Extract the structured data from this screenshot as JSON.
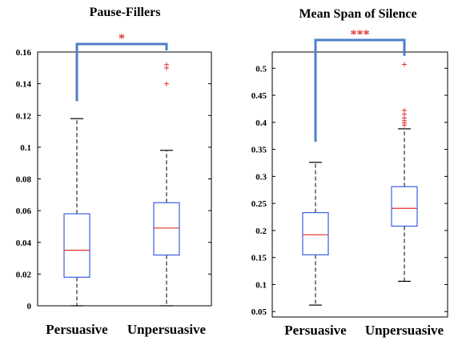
{
  "colors": {
    "box": "#3b5fe0",
    "median": "#e03030",
    "whisker": "#000000",
    "outlier": "#e03030",
    "bracket": "#4f7fc9",
    "star": "#e03030"
  },
  "chart_data": [
    {
      "type": "box",
      "title": "Pause-Fillers",
      "categories": [
        "Persuasive",
        "Unpersuasive"
      ],
      "ylim": [
        0,
        0.16
      ],
      "yticks": [
        0,
        0.02,
        0.04,
        0.06,
        0.08,
        0.1,
        0.12,
        0.14,
        0.16
      ],
      "ytick_labels": [
        "0",
        "0.02",
        "0.04",
        "0.06",
        "0.08",
        "0.1",
        "0.12",
        "0.14",
        "0.16"
      ],
      "boxes": [
        {
          "category": "Persuasive",
          "min": 0.0,
          "q1": 0.018,
          "median": 0.035,
          "q3": 0.058,
          "max": 0.118,
          "outliers": []
        },
        {
          "category": "Unpersuasive",
          "min": 0.0,
          "q1": 0.032,
          "median": 0.049,
          "q3": 0.065,
          "max": 0.098,
          "outliers": [
            0.14,
            0.15,
            0.152
          ]
        }
      ],
      "significance": {
        "label": "*",
        "level": 0.165,
        "left_bottom": 0.129,
        "right_bottom": 0.161
      }
    },
    {
      "type": "box",
      "title": "Mean Span of Silence",
      "categories": [
        "Persuasive",
        "Unpersuasive"
      ],
      "ylim": [
        0.04,
        0.53
      ],
      "yticks": [
        0.05,
        0.1,
        0.15,
        0.2,
        0.25,
        0.3,
        0.35,
        0.4,
        0.45,
        0.5
      ],
      "ytick_labels": [
        "0.05",
        "0.1",
        "0.15",
        "0.2",
        "0.25",
        "0.3",
        "0.35",
        "0.4",
        "0.45",
        "0.5"
      ],
      "boxes": [
        {
          "category": "Persuasive",
          "min": 0.062,
          "q1": 0.155,
          "median": 0.192,
          "q3": 0.233,
          "max": 0.326,
          "outliers": []
        },
        {
          "category": "Unpersuasive",
          "min": 0.106,
          "q1": 0.208,
          "median": 0.241,
          "q3": 0.281,
          "max": 0.388,
          "outliers": [
            0.395,
            0.399,
            0.403,
            0.408,
            0.415,
            0.422,
            0.507
          ]
        }
      ],
      "significance": {
        "label": "***",
        "level": 0.555,
        "left_bottom": 0.364,
        "right_bottom": 0.523
      }
    }
  ]
}
